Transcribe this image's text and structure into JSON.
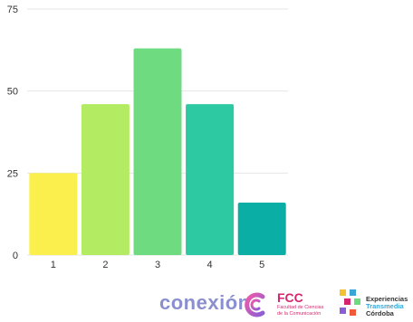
{
  "chart_data": {
    "type": "bar",
    "categories": [
      "1",
      "2",
      "3",
      "4",
      "5"
    ],
    "values": [
      25,
      46,
      63,
      46,
      16
    ],
    "colors": [
      "#fbef4e",
      "#b3eb63",
      "#6edb80",
      "#2dc9a3",
      "#0aaea4"
    ],
    "title": "",
    "xlabel": "",
    "ylabel": "",
    "ylim": [
      0,
      75
    ],
    "yticks": [
      0,
      25,
      50,
      75
    ],
    "grid": true
  },
  "footer": {
    "conexion": "conexión",
    "fcc_title": "FCC",
    "fcc_sub_1": "Facultad de Ciencias",
    "fcc_sub_2": "de la Comunicación",
    "exp_line1": "Experiencias",
    "exp_line2": "Transmedia",
    "exp_line3": "Córdoba"
  }
}
